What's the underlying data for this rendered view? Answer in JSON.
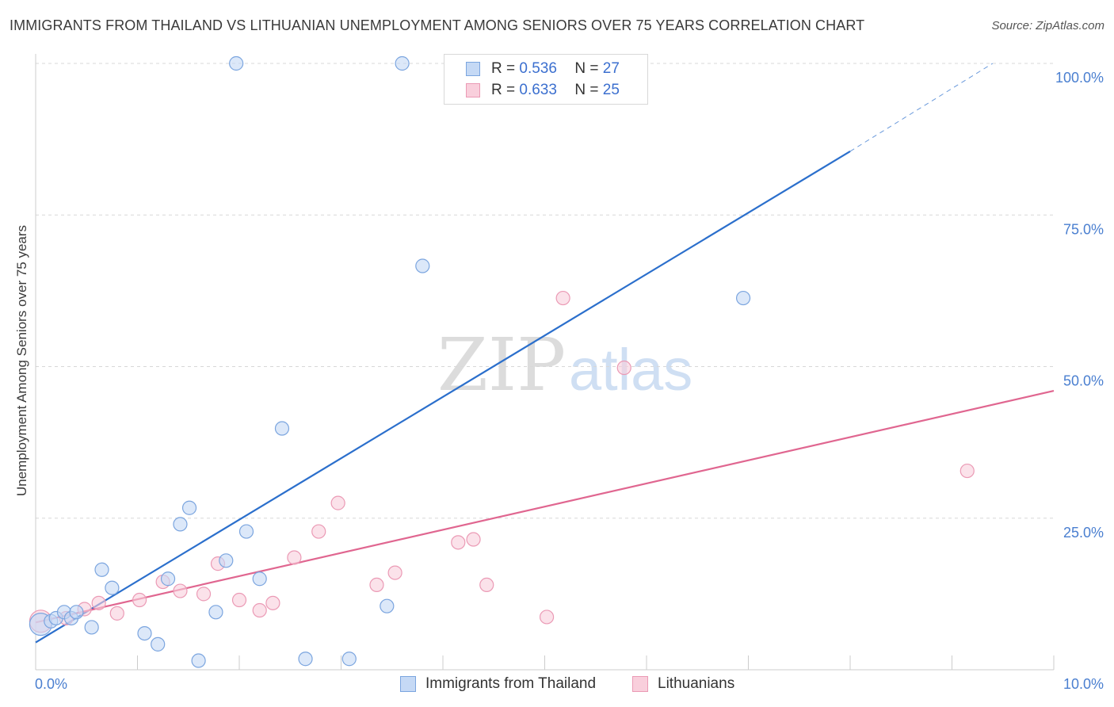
{
  "title": "IMMIGRANTS FROM THAILAND VS LITHUANIAN UNEMPLOYMENT AMONG SENIORS OVER 75 YEARS CORRELATION CHART",
  "source": "Source: ZipAtlas.com",
  "watermark": {
    "zip": "ZIP",
    "atlas": "atlas"
  },
  "legend": {
    "r_label": "R =",
    "n_label": "N =",
    "series": [
      {
        "r": "0.536",
        "n": "27"
      },
      {
        "r": "0.633",
        "n": "25"
      }
    ]
  },
  "colors": {
    "blue_fill": "#c5d9f5",
    "blue_stroke": "#7ba5df",
    "blue_line": "#2b6fcc",
    "pink_fill": "#f9cfdc",
    "pink_stroke": "#eb9ab5",
    "pink_line": "#e06690",
    "tick_text": "#4a7fd0",
    "grid": "#d8d8d8"
  },
  "chart_data": {
    "type": "scatter",
    "title": "IMMIGRANTS FROM THAILAND VS LITHUANIAN UNEMPLOYMENT AMONG SENIORS OVER 75 YEARS CORRELATION CHART",
    "xlabel": "",
    "ylabel": "Unemployment Among Seniors over 75 years",
    "xlim": [
      0,
      10
    ],
    "ylim": [
      0,
      100
    ],
    "x_tick_labels": [
      "0.0%",
      "10.0%"
    ],
    "y_ticks": [
      25,
      50,
      75,
      100
    ],
    "y_tick_labels": [
      "25.0%",
      "50.0%",
      "75.0%",
      "100.0%"
    ],
    "series": [
      {
        "name": "Immigrants from Thailand",
        "points": [
          [
            0.05,
            7.5
          ],
          [
            0.15,
            8.0
          ],
          [
            0.2,
            8.5
          ],
          [
            0.28,
            9.5
          ],
          [
            0.35,
            8.5
          ],
          [
            0.4,
            9.5
          ],
          [
            0.55,
            7.0
          ],
          [
            0.65,
            16.5
          ],
          [
            0.75,
            13.5
          ],
          [
            1.07,
            6.0
          ],
          [
            1.2,
            4.2
          ],
          [
            1.3,
            15.0
          ],
          [
            1.42,
            24.0
          ],
          [
            1.51,
            26.7
          ],
          [
            1.6,
            1.5
          ],
          [
            1.77,
            9.5
          ],
          [
            1.87,
            18.0
          ],
          [
            1.97,
            100.0
          ],
          [
            2.07,
            22.8
          ],
          [
            2.2,
            15.0
          ],
          [
            2.42,
            39.8
          ],
          [
            2.65,
            1.8
          ],
          [
            3.08,
            1.8
          ],
          [
            3.45,
            10.5
          ],
          [
            3.6,
            100.0
          ],
          [
            3.8,
            66.6
          ],
          [
            6.95,
            61.3
          ]
        ],
        "trend": {
          "x0": 0,
          "y0": 4.5,
          "x1": 8.0,
          "y1": 85.5,
          "dash_to_x": 9.4,
          "dash_to_y": 100.0
        }
      },
      {
        "name": "Lithuanians",
        "points": [
          [
            0.05,
            8.0
          ],
          [
            0.3,
            8.5
          ],
          [
            0.48,
            10.0
          ],
          [
            0.62,
            11.0
          ],
          [
            0.8,
            9.3
          ],
          [
            1.02,
            11.5
          ],
          [
            1.25,
            14.5
          ],
          [
            1.42,
            13.0
          ],
          [
            1.65,
            12.5
          ],
          [
            1.79,
            17.5
          ],
          [
            2.0,
            11.5
          ],
          [
            2.2,
            9.8
          ],
          [
            2.33,
            11.0
          ],
          [
            2.54,
            18.5
          ],
          [
            2.78,
            22.8
          ],
          [
            2.97,
            27.5
          ],
          [
            3.35,
            14.0
          ],
          [
            3.53,
            16.0
          ],
          [
            4.15,
            21.0
          ],
          [
            4.3,
            21.5
          ],
          [
            4.43,
            14.0
          ],
          [
            5.02,
            8.7
          ],
          [
            5.18,
            61.3
          ],
          [
            5.78,
            49.8
          ],
          [
            9.15,
            32.8
          ]
        ],
        "trend": {
          "x0": 0,
          "y0": 7.8,
          "x1": 10.0,
          "y1": 46.0
        }
      }
    ]
  }
}
